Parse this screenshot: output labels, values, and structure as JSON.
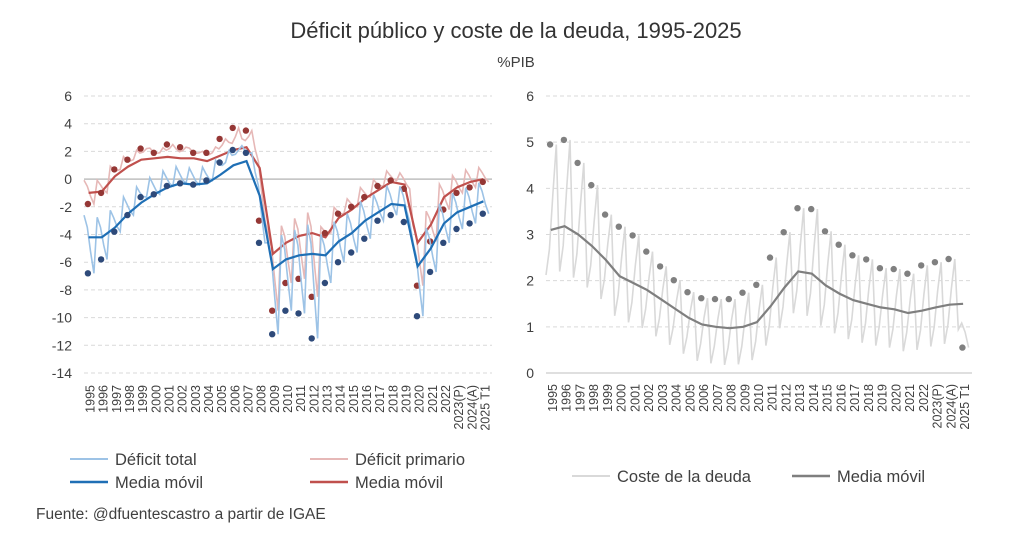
{
  "title": "Déficit público y coste de la deuda, 1995-2025",
  "unit": "%PIB",
  "source": "Fuente: @dfuentescastro a partir de IGAE",
  "colors": {
    "deficit_total": "#9dc3e6",
    "deficit_total_ma": "#1f6fb5",
    "deficit_total_marker": "#2e4a7a",
    "deficit_primario": "#e6b8b7",
    "deficit_primario_ma": "#c0504d",
    "deficit_primario_marker": "#953735",
    "coste": "#d9d9d9",
    "coste_ma": "#7f7f7f",
    "coste_marker": "#808080"
  },
  "chart_data": [
    {
      "type": "line",
      "ylim": [
        -14,
        6
      ],
      "yticks": [
        "6",
        "4",
        "2",
        "0",
        "-2",
        "-4",
        "-6",
        "-8",
        "-10",
        "-12",
        "-14"
      ],
      "categories": [
        "1995",
        "1996",
        "1997",
        "1998",
        "1999",
        "2000",
        "2001",
        "2002",
        "2003",
        "2004",
        "2005",
        "2006",
        "2007",
        "2008",
        "2009",
        "2010",
        "2011",
        "2012",
        "2013",
        "2014",
        "2015",
        "2016",
        "2017",
        "2018",
        "2019",
        "2020",
        "2021",
        "2022",
        "2023(P)",
        "2024(A)",
        "2025 T1"
      ],
      "series": [
        {
          "name": "Déficit total",
          "role": "total",
          "annual": [
            -6.8,
            -5.8,
            -3.8,
            -2.6,
            -1.3,
            -1.1,
            -0.5,
            -0.3,
            -0.4,
            -0.1,
            1.2,
            2.1,
            1.9,
            -4.6,
            -11.2,
            -9.5,
            -9.7,
            -11.5,
            -7.5,
            -6.0,
            -5.3,
            -4.3,
            -3.0,
            -2.6,
            -3.1,
            -9.9,
            -6.7,
            -4.6,
            -3.6,
            -3.2,
            -2.5
          ]
        },
        {
          "name": "Media móvil",
          "role": "total_ma",
          "ma": [
            -4.2,
            -4.2,
            -3.5,
            -2.5,
            -1.7,
            -1.1,
            -0.6,
            -0.3,
            -0.4,
            -0.3,
            0.3,
            1.0,
            1.3,
            -1.2,
            -6.5,
            -5.8,
            -5.5,
            -5.4,
            -5.5,
            -4.5,
            -3.9,
            -3.0,
            -2.4,
            -1.8,
            -1.9,
            -6.3,
            -5.0,
            -3.2,
            -2.4,
            -2.0,
            -1.6
          ]
        },
        {
          "name": "Déficit primario",
          "role": "primario",
          "annual": [
            -1.8,
            -1.0,
            0.7,
            1.4,
            2.2,
            1.9,
            2.5,
            2.3,
            1.9,
            1.9,
            2.9,
            3.7,
            3.5,
            -3.0,
            -9.5,
            -7.5,
            -7.2,
            -8.5,
            -3.9,
            -2.5,
            -2.0,
            -1.3,
            -0.5,
            -0.1,
            -0.7,
            -7.7,
            -4.5,
            -2.2,
            -1.0,
            -0.6,
            -0.2
          ]
        },
        {
          "name": "Media móvil",
          "role": "primario_ma",
          "ma": [
            -1.0,
            -0.9,
            0.2,
            0.9,
            1.4,
            1.5,
            1.6,
            1.5,
            1.5,
            1.3,
            1.7,
            2.1,
            2.3,
            0.8,
            -5.4,
            -4.6,
            -4.1,
            -3.9,
            -4.2,
            -2.8,
            -2.2,
            -1.4,
            -0.8,
            -0.2,
            -0.4,
            -4.6,
            -3.3,
            -1.3,
            -0.6,
            -0.2,
            0.0
          ]
        }
      ]
    },
    {
      "type": "line",
      "ylim": [
        0,
        6
      ],
      "yticks": [
        "6",
        "5",
        "4",
        "3",
        "2",
        "1",
        "0"
      ],
      "categories": [
        "1995",
        "1996",
        "1997",
        "1998",
        "1999",
        "2000",
        "2001",
        "2002",
        "2003",
        "2004",
        "2005",
        "2006",
        "2007",
        "2008",
        "2009",
        "2010",
        "2011",
        "2012",
        "2013",
        "2014",
        "2015",
        "2016",
        "2017",
        "2018",
        "2019",
        "2020",
        "2021",
        "2022",
        "2023(P)",
        "2024(A)",
        "2025 T1"
      ],
      "series": [
        {
          "name": "Coste de la deuda",
          "role": "coste",
          "annual": [
            4.95,
            5.05,
            4.55,
            4.07,
            3.43,
            3.17,
            2.98,
            2.63,
            2.31,
            2.01,
            1.75,
            1.62,
            1.6,
            1.6,
            1.74,
            1.91,
            2.5,
            3.05,
            3.57,
            3.55,
            3.07,
            2.78,
            2.55,
            2.46,
            2.27,
            2.25,
            2.15,
            2.33,
            2.4,
            2.47,
            0.55
          ]
        },
        {
          "name": "Media móvil",
          "role": "coste_ma",
          "ma": [
            3.1,
            3.18,
            3.0,
            2.75,
            2.45,
            2.1,
            1.95,
            1.8,
            1.6,
            1.4,
            1.2,
            1.05,
            1.0,
            0.97,
            1.0,
            1.1,
            1.45,
            1.85,
            2.2,
            2.15,
            1.9,
            1.72,
            1.58,
            1.5,
            1.42,
            1.38,
            1.3,
            1.35,
            1.42,
            1.48,
            1.5
          ]
        }
      ]
    }
  ],
  "legends": {
    "left": [
      {
        "label": "Déficit total"
      },
      {
        "label": "Déficit primario"
      },
      {
        "label": "Media móvil"
      },
      {
        "label": "Media móvil"
      }
    ],
    "right": [
      {
        "label": "Coste de la deuda"
      },
      {
        "label": "Media móvil"
      }
    ]
  }
}
